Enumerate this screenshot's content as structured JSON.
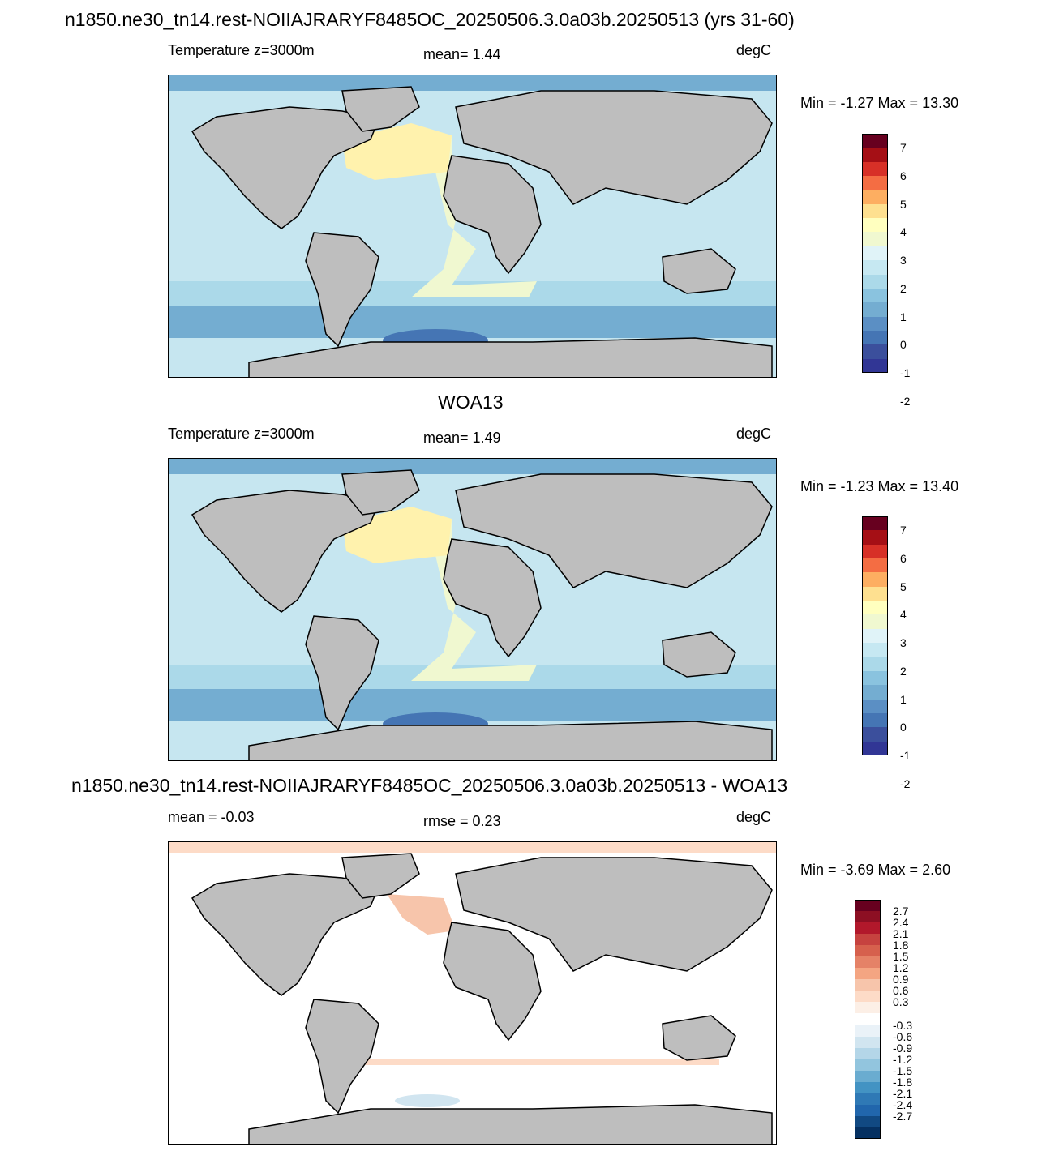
{
  "figure_title": "n1850.ne30_tn14.rest-NOIIAJRARYF8485OC_20250506.3.0a03b.20250513 (yrs 31-60)",
  "panels": [
    {
      "title": "",
      "left_label": "Temperature z=3000m",
      "center_label": "mean=   1.44",
      "right_label": "degC",
      "minmax": "Min =  -1.27 Max =  13.30",
      "colorbar": [
        "7",
        "6",
        "5",
        "4",
        "3",
        "2",
        "1",
        "0",
        "-1",
        "-2"
      ],
      "palette": [
        "#67001f",
        "#a50f15",
        "#d73027",
        "#f46d43",
        "#fdae61",
        "#fee090",
        "#ffffbf",
        "#f0f8d0",
        "#e0f3f8",
        "#c6e8f2",
        "#abd9e9",
        "#8ac3df",
        "#74add1",
        "#5b8fc4",
        "#4575b4",
        "#3b4f9c",
        "#313695"
      ],
      "ocean_fill": "#c6e6f0"
    },
    {
      "title": "WOA13",
      "left_label": "Temperature z=3000m",
      "center_label": "mean=   1.49",
      "right_label": "degC",
      "minmax": "Min =  -1.23 Max =  13.40",
      "colorbar": [
        "7",
        "6",
        "5",
        "4",
        "3",
        "2",
        "1",
        "0",
        "-1",
        "-2"
      ],
      "palette": [
        "#67001f",
        "#a50f15",
        "#d73027",
        "#f46d43",
        "#fdae61",
        "#fee090",
        "#ffffbf",
        "#f0f8d0",
        "#e0f3f8",
        "#c6e8f2",
        "#abd9e9",
        "#8ac3df",
        "#74add1",
        "#5b8fc4",
        "#4575b4",
        "#3b4f9c",
        "#313695"
      ],
      "ocean_fill": "#c6e6f0"
    },
    {
      "title": "n1850.ne30_tn14.rest-NOIIAJRARYF8485OC_20250506.3.0a03b.20250513 - WOA13",
      "left_label": "mean =  -0.03",
      "center_label": "rmse =    0.23",
      "right_label": "degC",
      "minmax": "Min =  -3.69 Max =   2.60",
      "colorbar": [
        "2.7",
        "2.4",
        "2.1",
        "1.8",
        "1.5",
        "1.2",
        "0.9",
        "0.6",
        "0.3",
        "-0.3",
        "-0.6",
        "-0.9",
        "-1.2",
        "-1.5",
        "-1.8",
        "-2.1",
        "-2.4",
        "-2.7"
      ],
      "palette": [
        "#67001f",
        "#8d0f23",
        "#b2182b",
        "#c6423f",
        "#d6604d",
        "#e58267",
        "#f4a582",
        "#f7c5ab",
        "#fddbc7",
        "#fcefe6",
        "#ffffff",
        "#eaf2f8",
        "#d1e5f0",
        "#b4d6e8",
        "#92c5de",
        "#6aacd0",
        "#4393c3",
        "#2f79b5",
        "#2166ac",
        "#114982",
        "#053061"
      ],
      "ocean_fill": "#ffffff"
    }
  ],
  "colors": {
    "land": "#bebebe",
    "coast": "#000000"
  }
}
